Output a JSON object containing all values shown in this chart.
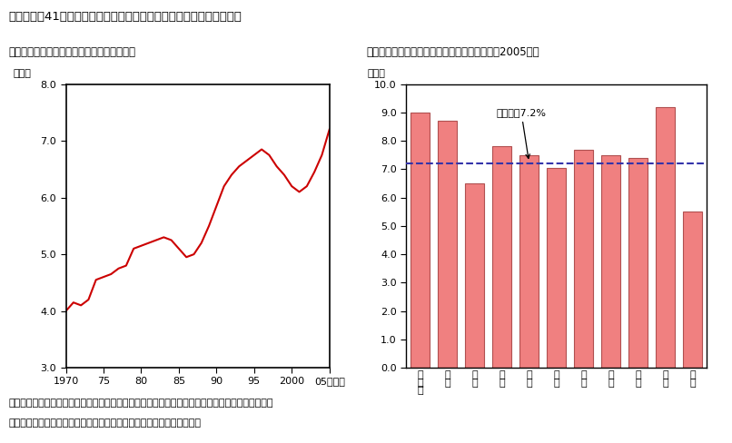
{
  "title": "第１－１－41図　エネルギー消費のシェアの推移、地域別のウェイト",
  "subtitle1": "（１）　エネルギー関連品目のシェアの推移",
  "subtitle2": "（２）　地域別のエネルギー消費のウェイト（2005年）",
  "line_ylabel": "（％）",
  "bar_ylabel": "（％）",
  "line_years": [
    1970,
    1971,
    1972,
    1973,
    1974,
    1975,
    1976,
    1977,
    1978,
    1979,
    1980,
    1981,
    1982,
    1983,
    1984,
    1985,
    1986,
    1987,
    1988,
    1989,
    1990,
    1991,
    1992,
    1993,
    1994,
    1995,
    1996,
    1997,
    1998,
    1999,
    2000,
    2001,
    2002,
    2003,
    2004,
    2005
  ],
  "line_values": [
    4.0,
    4.15,
    4.1,
    4.2,
    4.55,
    4.6,
    4.65,
    4.75,
    4.8,
    5.1,
    5.15,
    5.2,
    5.25,
    5.3,
    5.25,
    5.1,
    4.95,
    5.0,
    5.2,
    5.5,
    5.85,
    6.2,
    6.4,
    6.55,
    6.65,
    6.75,
    6.85,
    6.75,
    6.55,
    6.4,
    6.2,
    6.1,
    6.2,
    6.45,
    6.75,
    7.2
  ],
  "line_color": "#cc0000",
  "line_ylim": [
    3.0,
    8.0
  ],
  "line_yticks": [
    3.0,
    4.0,
    5.0,
    6.0,
    7.0,
    8.0
  ],
  "line_xticks": [
    1970,
    1975,
    1980,
    1985,
    1990,
    1995,
    2000,
    2005
  ],
  "line_xlabel_extra": "（年）",
  "bar_categories": [
    "北\n海\n道",
    "東\n北",
    "関\n東",
    "北\n陸",
    "東\n海",
    "近\n畿",
    "中\n国",
    "四\n国",
    "九\n州",
    "沖\n縄",
    "東\n京"
  ],
  "bar_values": [
    9.0,
    8.7,
    6.5,
    7.8,
    7.5,
    7.05,
    7.7,
    7.5,
    7.4,
    9.2,
    5.5
  ],
  "bar_color": "#f08080",
  "bar_edge_color": "#b05050",
  "bar_ylim": [
    0.0,
    10.0
  ],
  "bar_yticks": [
    0.0,
    1.0,
    2.0,
    3.0,
    4.0,
    5.0,
    6.0,
    7.0,
    8.0,
    9.0,
    10.0
  ],
  "average_line": 7.2,
  "average_label": "全国平均7.2%",
  "average_line_color": "#3333aa",
  "footnote1": "（備考）１．総務省「家計調査（二人以上の世帯（農林漁家世帯を除く、全世帯））」より作成。",
  "footnote2": "　　　　２．エネルギー関連品目は電気代、ガス代、ガソリン、灯油。"
}
